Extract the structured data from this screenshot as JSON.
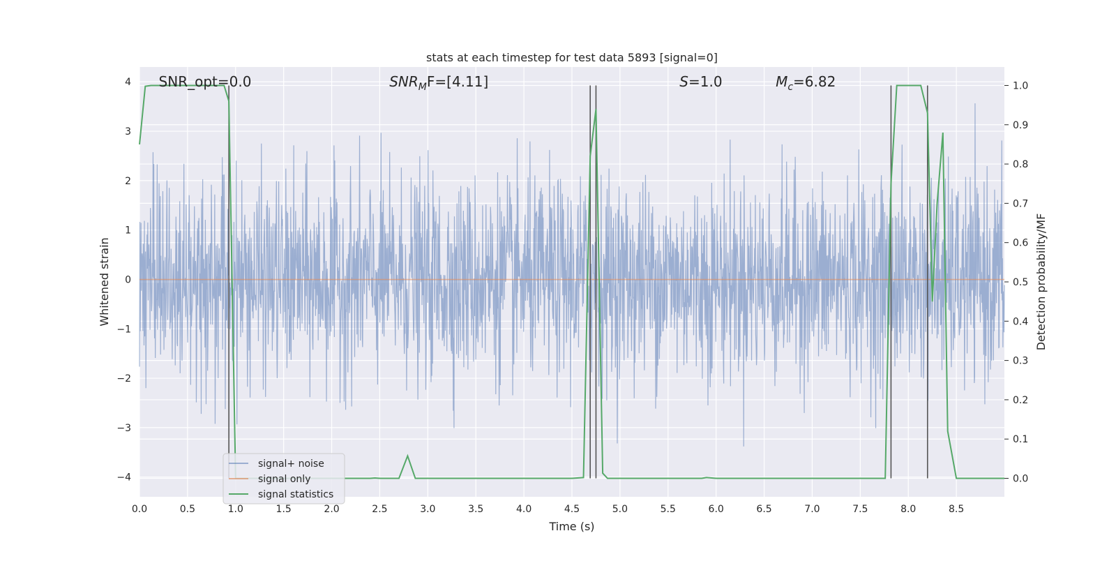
{
  "chart_data": {
    "type": "line",
    "title": "stats at each timestep for test data 5893 [signal=0]",
    "xlabel": "Time (s)",
    "ylabel": "Whitened strain",
    "ylabel_right": "Detection probability/MF",
    "xlim": [
      0.0,
      9.0
    ],
    "ylim": [
      -4.4,
      4.3
    ],
    "ylim_right": [
      -0.047,
      1.047
    ],
    "x_ticks": [
      "0.0",
      "0.5",
      "1.0",
      "1.5",
      "2.0",
      "2.5",
      "3.0",
      "3.5",
      "4.0",
      "4.5",
      "5.0",
      "5.5",
      "6.0",
      "6.5",
      "7.0",
      "7.5",
      "8.0",
      "8.5"
    ],
    "x_tick_values": [
      0.0,
      0.5,
      1.0,
      1.5,
      2.0,
      2.5,
      3.0,
      3.5,
      4.0,
      4.5,
      5.0,
      5.5,
      6.0,
      6.5,
      7.0,
      7.5,
      8.0,
      8.5
    ],
    "y_ticks": [
      "4",
      "3",
      "2",
      "1",
      "0",
      "−1",
      "−2",
      "−3",
      "−4"
    ],
    "y_tick_values": [
      4,
      3,
      2,
      1,
      0,
      -1,
      -2,
      -3,
      -4
    ],
    "y_ticks_right": [
      "1.0",
      "0.9",
      "0.8",
      "0.7",
      "0.6",
      "0.5",
      "0.4",
      "0.3",
      "0.2",
      "0.1",
      "0.0"
    ],
    "y_tick_values_right": [
      1.0,
      0.9,
      0.8,
      0.7,
      0.6,
      0.5,
      0.4,
      0.3,
      0.2,
      0.1,
      0.0
    ],
    "grid": true,
    "legend_placement": "lower-left",
    "annotations": [
      {
        "text": "SNR_opt=0.0",
        "x": 0.2,
        "y": 4.0
      },
      {
        "prefix": "SNR",
        "sub": "M",
        "suffix": "F=[4.11]",
        "x": 2.6,
        "y": 4.0
      },
      {
        "prefix": "S",
        "sub": "",
        "suffix": "=1.0",
        "x": 5.62,
        "y": 4.0
      },
      {
        "prefix": "M",
        "sub": "c",
        "suffix": "=6.82",
        "x": 6.62,
        "y": 4.0
      }
    ],
    "vlines": [
      {
        "x": 0.93,
        "y_range": [
          0.0,
          1.0
        ]
      },
      {
        "x": 4.69,
        "y_range": [
          0.0,
          1.0
        ]
      },
      {
        "x": 4.75,
        "y_range": [
          0.0,
          1.0
        ]
      },
      {
        "x": 7.82,
        "y_range": [
          0.0,
          1.0
        ]
      },
      {
        "x": 8.2,
        "y_range": [
          0.0,
          1.0
        ]
      }
    ],
    "series": [
      {
        "name": "signal+ noise",
        "axis": "left",
        "color": "#4c72b0",
        "noise_stats": {
          "mean": 0.0,
          "std": 1.0,
          "n": 2300,
          "seed": 5893
        }
      },
      {
        "name": "signal only",
        "axis": "left",
        "color": "#dd8452",
        "x": [
          0.0,
          9.0
        ],
        "y": [
          0.0,
          0.0
        ]
      },
      {
        "name": "signal statistics",
        "axis": "right",
        "color": "#55a868",
        "x": [
          0.0,
          0.06,
          0.12,
          0.5,
          0.88,
          0.93,
          1.0,
          1.5,
          2.0,
          2.4,
          2.45,
          2.5,
          2.7,
          2.79,
          2.87,
          3.0,
          3.5,
          4.0,
          4.5,
          4.62,
          4.69,
          4.75,
          4.82,
          4.87,
          5.0,
          5.5,
          5.85,
          5.9,
          6.0,
          6.5,
          7.0,
          7.5,
          7.76,
          7.82,
          7.88,
          7.94,
          8.0,
          8.13,
          8.2,
          8.25,
          8.3,
          8.36,
          8.41,
          8.5,
          9.0
        ],
        "y": [
          0.85,
          0.998,
          1.0,
          1.0,
          1.0,
          0.96,
          0.0,
          0.0,
          0.0,
          0.0,
          0.001,
          0.0,
          0.0,
          0.057,
          0.0,
          0.0,
          0.0,
          0.0,
          0.0,
          0.002,
          0.82,
          0.94,
          0.013,
          0.0,
          0.0,
          0.0,
          0.0,
          0.002,
          0.0,
          0.0,
          0.0,
          0.0,
          0.0,
          0.75,
          1.0,
          1.0,
          1.0,
          1.0,
          0.93,
          0.45,
          0.7,
          0.88,
          0.12,
          0.0,
          0.0
        ]
      }
    ]
  }
}
